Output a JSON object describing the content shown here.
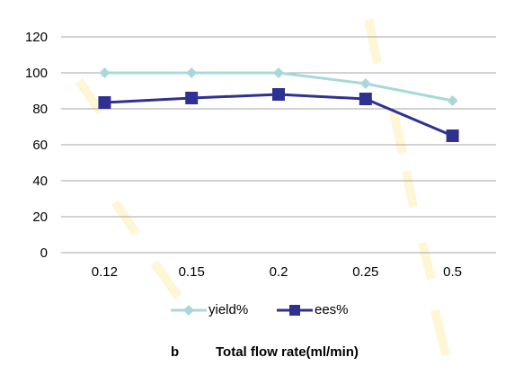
{
  "chart_data": {
    "type": "line",
    "categories": [
      "0.12",
      "0.15",
      "0.2",
      "0.25",
      "0.5"
    ],
    "series": [
      {
        "name": "yield%",
        "values": [
          100,
          100,
          100,
          94,
          84.5
        ],
        "color": "#A9D8DB",
        "marker": "diamond"
      },
      {
        "name": "ees%",
        "values": [
          83.5,
          86,
          88,
          85.5,
          65
        ],
        "color": "#2E3192",
        "marker": "square"
      }
    ],
    "ylim": [
      0,
      120
    ],
    "yticks": [
      "0",
      "20",
      "40",
      "60",
      "80",
      "100",
      "120"
    ],
    "grid": true,
    "legend_position": "bottom",
    "caption_letter": "b",
    "caption_text": "Total flow rate(ml/min)"
  }
}
